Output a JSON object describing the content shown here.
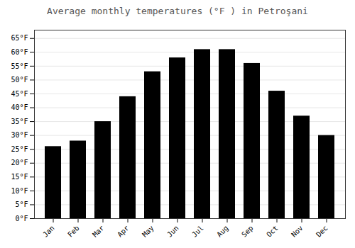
{
  "chart_data": {
    "type": "bar",
    "title": "Average monthly temperatures (°F ) in Petroşani",
    "categories": [
      "Jan",
      "Feb",
      "Mar",
      "Apr",
      "May",
      "Jun",
      "Jul",
      "Aug",
      "Sep",
      "Oct",
      "Nov",
      "Dec"
    ],
    "values": [
      26,
      28,
      35,
      44,
      53,
      58,
      61,
      61,
      56,
      46,
      37,
      30
    ],
    "ylim": [
      0,
      68
    ],
    "yticks": [
      {
        "value": 0,
        "label": "0°F"
      },
      {
        "value": 5,
        "label": "5°F"
      },
      {
        "value": 10,
        "label": "10°F"
      },
      {
        "value": 15,
        "label": "15°F"
      },
      {
        "value": 20,
        "label": "20°F"
      },
      {
        "value": 25,
        "label": "25°F"
      },
      {
        "value": 30,
        "label": "30°F"
      },
      {
        "value": 35,
        "label": "35°F"
      },
      {
        "value": 40,
        "label": "40°F"
      },
      {
        "value": 45,
        "label": "45°F"
      },
      {
        "value": 50,
        "label": "50°F"
      },
      {
        "value": 55,
        "label": "55°F"
      },
      {
        "value": 60,
        "label": "60°F"
      },
      {
        "value": 65,
        "label": "65°F"
      }
    ],
    "grid": true
  }
}
